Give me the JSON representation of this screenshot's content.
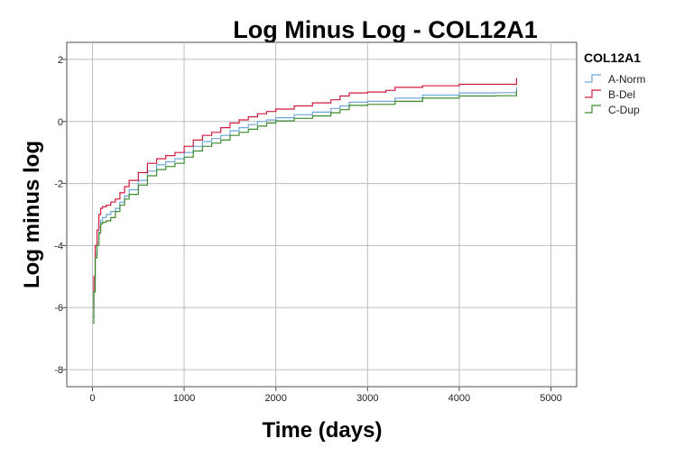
{
  "chart_data": {
    "type": "line",
    "title": "Log Minus Log - COL12A1",
    "xlabel": "Time (days)",
    "ylabel": "Log minus log",
    "xlim": [
      -280,
      5280
    ],
    "ylim": [
      -8.55,
      2.55
    ],
    "x_ticks": [
      0,
      1000,
      2000,
      3000,
      4000,
      5000
    ],
    "y_ticks": [
      2,
      0,
      -2,
      -4,
      -6,
      -8
    ],
    "grid": true,
    "legend": {
      "title": "COL12A1",
      "placement": "right"
    },
    "series": [
      {
        "name": "A-Norm",
        "color": "#6ea6d8",
        "x": [
          5,
          15,
          30,
          50,
          70,
          90,
          110,
          150,
          200,
          250,
          300,
          350,
          400,
          500,
          600,
          700,
          800,
          900,
          1000,
          1100,
          1200,
          1300,
          1400,
          1500,
          1600,
          1700,
          1800,
          1900,
          2000,
          2200,
          2400,
          2600,
          2700,
          2800,
          3000,
          3200,
          3300,
          3600,
          4000,
          4400,
          4620,
          4625
        ],
        "y": [
          -6.3,
          -5.3,
          -4.3,
          -3.9,
          -3.4,
          -3.2,
          -3.1,
          -3.0,
          -2.9,
          -2.8,
          -2.6,
          -2.4,
          -2.2,
          -1.9,
          -1.6,
          -1.4,
          -1.3,
          -1.2,
          -1.0,
          -0.8,
          -0.65,
          -0.55,
          -0.45,
          -0.3,
          -0.2,
          -0.1,
          0.0,
          0.05,
          0.12,
          0.22,
          0.3,
          0.42,
          0.5,
          0.62,
          0.65,
          0.65,
          0.75,
          0.85,
          0.92,
          0.93,
          0.93,
          1.1
        ]
      },
      {
        "name": "B-Del",
        "color": "#d01b3f",
        "x": [
          5,
          15,
          30,
          50,
          70,
          90,
          110,
          150,
          200,
          250,
          300,
          350,
          400,
          500,
          600,
          700,
          800,
          900,
          1000,
          1100,
          1200,
          1300,
          1400,
          1500,
          1600,
          1700,
          1800,
          1900,
          2000,
          2200,
          2400,
          2600,
          2700,
          2800,
          3000,
          3200,
          3300,
          3600,
          4000,
          4400,
          4620,
          4625
        ],
        "y": [
          -6.0,
          -5.0,
          -4.0,
          -3.5,
          -3.0,
          -2.8,
          -2.75,
          -2.7,
          -2.6,
          -2.5,
          -2.3,
          -2.1,
          -1.9,
          -1.65,
          -1.35,
          -1.2,
          -1.1,
          -1.0,
          -0.8,
          -0.6,
          -0.45,
          -0.35,
          -0.2,
          -0.05,
          0.05,
          0.15,
          0.25,
          0.32,
          0.4,
          0.5,
          0.6,
          0.7,
          0.82,
          0.92,
          0.95,
          1.0,
          1.1,
          1.15,
          1.2,
          1.2,
          1.2,
          1.4
        ]
      },
      {
        "name": "C-Dup",
        "color": "#3d8a2e",
        "x": [
          5,
          15,
          30,
          50,
          70,
          90,
          110,
          150,
          200,
          250,
          300,
          350,
          400,
          500,
          600,
          700,
          800,
          900,
          1000,
          1100,
          1200,
          1300,
          1400,
          1500,
          1600,
          1700,
          1800,
          1900,
          2000,
          2200,
          2400,
          2600,
          2700,
          2800,
          3000,
          3200,
          3300,
          3600,
          4000,
          4400,
          4620,
          4625
        ],
        "y": [
          -6.5,
          -5.5,
          -4.4,
          -4.0,
          -3.6,
          -3.3,
          -3.25,
          -3.2,
          -3.1,
          -2.9,
          -2.7,
          -2.5,
          -2.35,
          -2.05,
          -1.75,
          -1.55,
          -1.45,
          -1.35,
          -1.15,
          -0.95,
          -0.8,
          -0.7,
          -0.6,
          -0.45,
          -0.35,
          -0.25,
          -0.15,
          -0.05,
          0.02,
          0.1,
          0.18,
          0.28,
          0.38,
          0.52,
          0.55,
          0.55,
          0.65,
          0.75,
          0.82,
          0.83,
          0.83,
          1.0
        ]
      }
    ]
  }
}
